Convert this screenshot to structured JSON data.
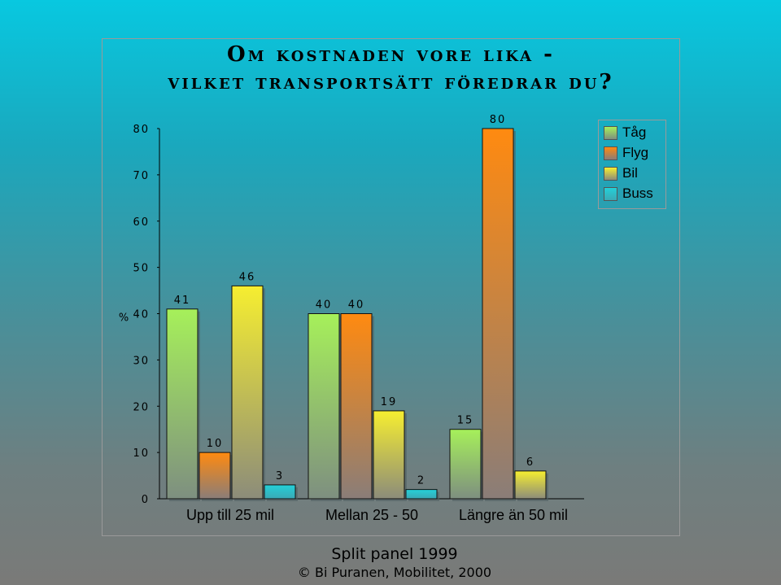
{
  "title_line1": "Om kostnaden vore lika -",
  "title_line2": "vilket transportsätt föredrar du?",
  "footer_line1": "Split panel 1999",
  "footer_line2": "© Bi Puranen, Mobilitet, 2000",
  "chart_data": {
    "type": "bar",
    "ylabel": "%",
    "ylim": [
      0,
      80
    ],
    "yticks": [
      0,
      10,
      20,
      30,
      40,
      50,
      60,
      70,
      80
    ],
    "grid": false,
    "legend_position": "top-right",
    "categories": [
      "Upp till 25 mil",
      "Mellan 25 - 50",
      "Längre än 50 mil"
    ],
    "series": [
      {
        "name": "Tåg",
        "color": "#8fdc3c",
        "values": [
          41,
          40,
          15
        ]
      },
      {
        "name": "Flyg",
        "color": "#f57f0a",
        "values": [
          10,
          40,
          80
        ]
      },
      {
        "name": "Bil",
        "color": "#f0e62a",
        "values": [
          46,
          19,
          6
        ]
      },
      {
        "name": "Buss",
        "color": "#2cc4cc",
        "values": [
          3,
          2,
          null
        ]
      }
    ]
  }
}
